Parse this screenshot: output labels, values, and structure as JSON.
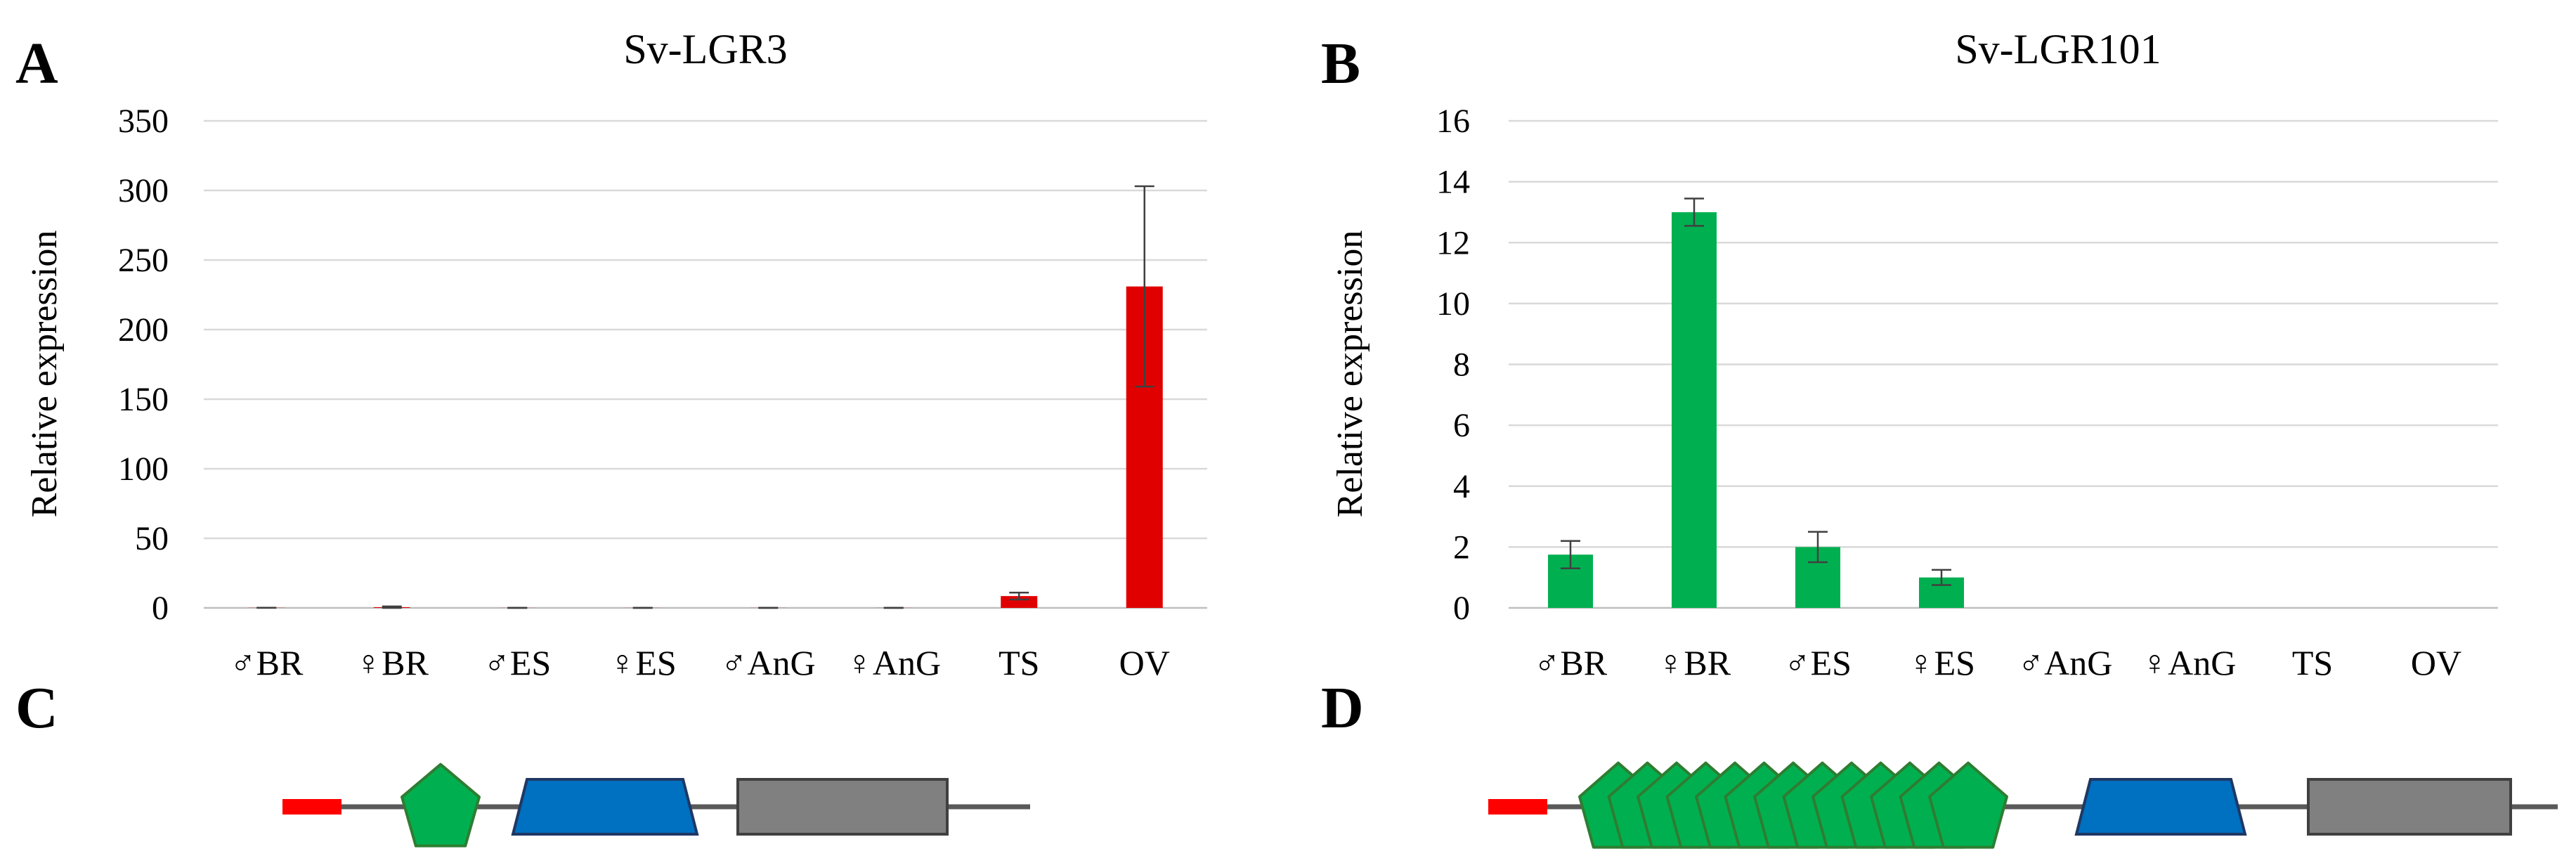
{
  "panel_labels": [
    "A",
    "B",
    "C",
    "D"
  ],
  "chart_data": [
    {
      "type": "bar",
      "title": "Sv-LGR3",
      "xlabel": "",
      "ylabel": "Relative expression",
      "categories": [
        "♂BR",
        "♀BR",
        "♂ES",
        "♀ES",
        "♂AnG",
        "♀AnG",
        "TS",
        "OV"
      ],
      "values": [
        0.1,
        0.5,
        0.05,
        0.05,
        0.05,
        0.05,
        8.5,
        231
      ],
      "errors": [
        0.05,
        0.6,
        0.02,
        0.02,
        0.02,
        0.02,
        2.5,
        72
      ],
      "ylim": [
        0,
        350
      ],
      "yticks": [
        0,
        50,
        100,
        150,
        200,
        250,
        300,
        350
      ],
      "color": "#e00000",
      "grid": true
    },
    {
      "type": "bar",
      "title": "Sv-LGR101",
      "xlabel": "",
      "ylabel": "Relative expression",
      "categories": [
        "♂BR",
        "♀BR",
        "♂ES",
        "♀ES",
        "♂AnG",
        "♀AnG",
        "TS",
        "OV"
      ],
      "values": [
        1.75,
        13.0,
        2.0,
        1.0,
        0,
        0,
        0,
        0
      ],
      "errors": [
        0.45,
        0.45,
        0.5,
        0.25,
        0,
        0,
        0,
        0
      ],
      "ylim": [
        0,
        16
      ],
      "yticks": [
        0,
        2,
        4,
        6,
        8,
        10,
        12,
        14,
        16
      ],
      "color": "#00b050",
      "grid": true
    }
  ],
  "domain_diagrams": [
    {
      "panel": "C",
      "signal_peptide_color": "#ff0000",
      "lrr_color": "#00b050",
      "lrr_count": 1,
      "tm_domain_color": "#0070c0",
      "cterm_color": "#808080",
      "line_color": "#595959"
    },
    {
      "panel": "D",
      "signal_peptide_color": "#ff0000",
      "lrr_color": "#00b050",
      "lrr_count": 13,
      "tm_domain_color": "#0070c0",
      "cterm_color": "#808080",
      "line_color": "#595959"
    }
  ]
}
